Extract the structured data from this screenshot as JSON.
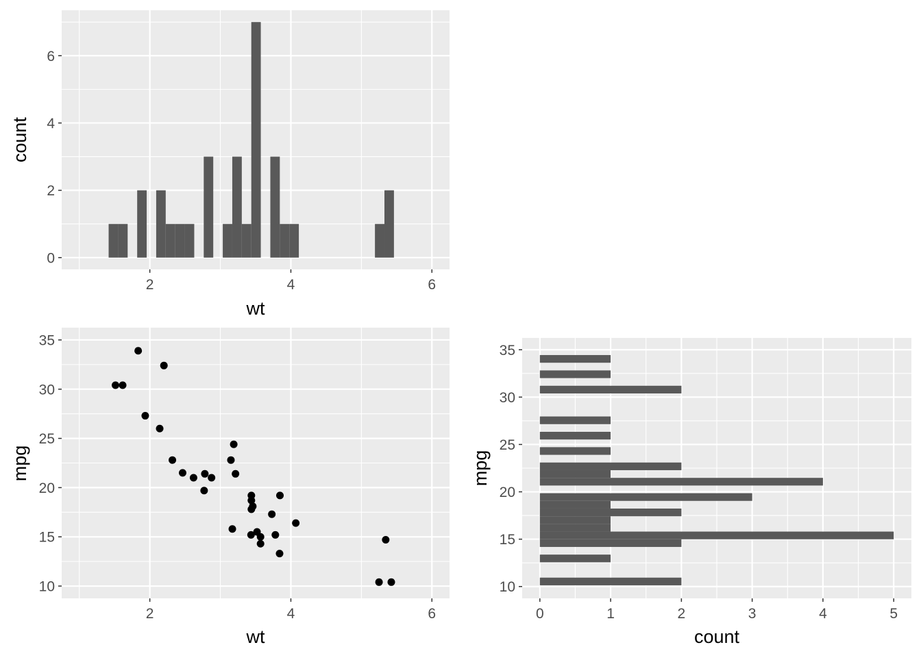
{
  "colors": {
    "panel": "#EBEBEB",
    "grid": "#FFFFFF",
    "bar": "#595959",
    "point": "#000000",
    "tick_text": "#4D4D4D",
    "tick": "#333333"
  },
  "chart_data": [
    {
      "id": "hist-wt",
      "type": "bar",
      "title": "",
      "xlabel": "wt",
      "ylabel": "count",
      "xlim": [
        1,
        6
      ],
      "ylim": [
        0,
        7
      ],
      "x_ticks": [
        2,
        4,
        6
      ],
      "y_ticks": [
        0,
        2,
        4,
        6
      ],
      "bin_start": 1.416,
      "bin_width": 0.13486,
      "counts": [
        1,
        1,
        0,
        2,
        0,
        2,
        1,
        1,
        1,
        0,
        3,
        0,
        1,
        3,
        1,
        7,
        0,
        3,
        1,
        1,
        0,
        0,
        0,
        0,
        0,
        0,
        0,
        0,
        1,
        2
      ],
      "grid": true
    },
    {
      "id": "scatter-wt-mpg",
      "type": "scatter",
      "title": "",
      "xlabel": "wt",
      "ylabel": "mpg",
      "xlim": [
        1,
        6
      ],
      "ylim": [
        10,
        35
      ],
      "x_ticks": [
        2,
        4,
        6
      ],
      "y_ticks": [
        10,
        15,
        20,
        25,
        30,
        35
      ],
      "x": [
        2.62,
        2.875,
        2.32,
        3.215,
        3.44,
        3.46,
        3.57,
        3.19,
        3.15,
        3.44,
        3.44,
        4.07,
        3.73,
        3.78,
        5.25,
        5.424,
        5.345,
        2.2,
        1.615,
        1.835,
        2.465,
        3.52,
        3.435,
        3.84,
        3.845,
        1.935,
        2.14,
        1.513,
        3.17,
        2.77,
        3.57,
        2.78
      ],
      "y": [
        21.0,
        21.0,
        22.8,
        21.4,
        18.7,
        18.1,
        14.3,
        24.4,
        22.8,
        19.2,
        17.8,
        16.4,
        17.3,
        15.2,
        10.4,
        10.4,
        14.7,
        32.4,
        30.4,
        33.9,
        21.5,
        15.5,
        15.2,
        13.3,
        19.2,
        27.3,
        26.0,
        30.4,
        15.8,
        19.7,
        15.0,
        21.4
      ],
      "grid": true
    },
    {
      "id": "hist-mpg",
      "type": "bar",
      "orientation": "horizontal",
      "title": "",
      "xlabel": "count",
      "ylabel": "mpg",
      "xlim": [
        0,
        5
      ],
      "ylim": [
        10,
        35
      ],
      "x_ticks": [
        0,
        1,
        2,
        3,
        4,
        5
      ],
      "y_ticks": [
        10,
        15,
        20,
        25,
        30,
        35
      ],
      "bin_start": 10.129,
      "bin_width": 0.81034,
      "counts": [
        2,
        0,
        0,
        1,
        0,
        2,
        5,
        1,
        1,
        2,
        1,
        3,
        0,
        4,
        1,
        2,
        0,
        1,
        0,
        1,
        0,
        1,
        0,
        0,
        0,
        2,
        0,
        1,
        0,
        1
      ],
      "grid": true
    }
  ]
}
